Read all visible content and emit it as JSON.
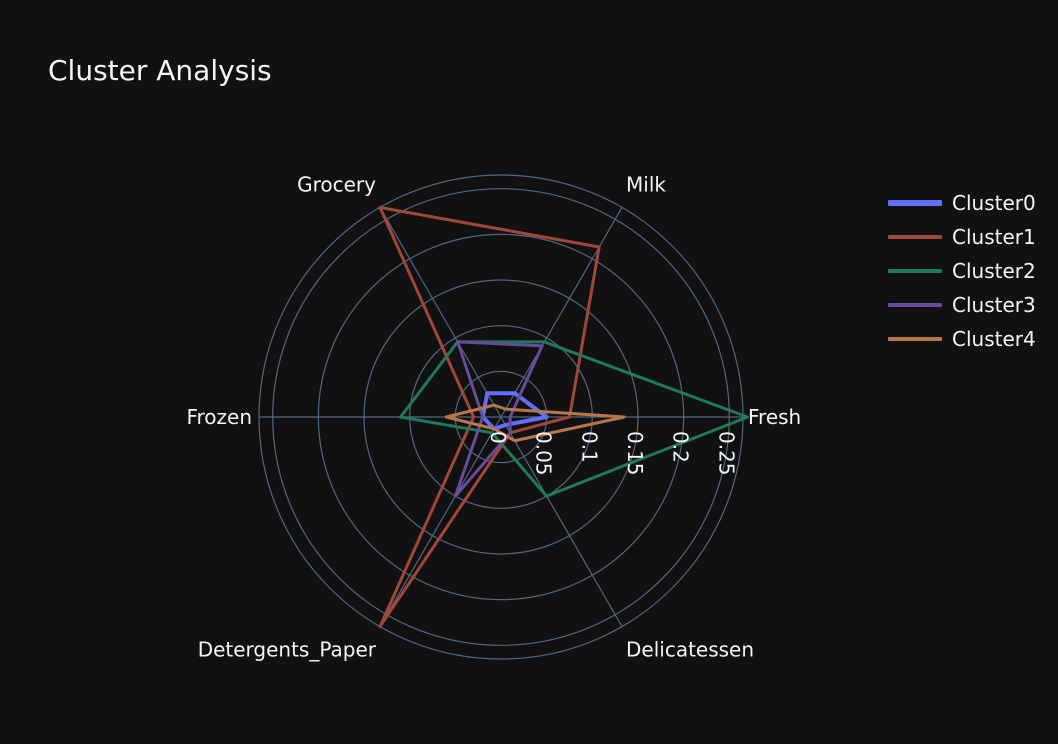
{
  "chart_data": {
    "type": "radar",
    "title": "Cluster Analysis",
    "axes": [
      "Fresh",
      "Milk",
      "Grocery",
      "Frozen",
      "Detergents_Paper",
      "Delicatessen"
    ],
    "radial_ticks": [
      "0",
      "0.05",
      "0.1",
      "0.15",
      "0.2",
      "0.25"
    ],
    "radial_range": [
      0,
      0.265
    ],
    "legend_position": "top-right",
    "series": [
      {
        "name": "Cluster0",
        "color": "#636efa",
        "values": [
          0.05,
          0.03,
          0.03,
          0.02,
          0.015,
          0.01
        ]
      },
      {
        "name": "Cluster1",
        "color": "#a0473a",
        "values": [
          0.075,
          0.215,
          0.265,
          0.03,
          0.265,
          0.02
        ]
      },
      {
        "name": "Cluster2",
        "color": "#1f7a5a",
        "values": [
          0.27,
          0.095,
          0.095,
          0.11,
          0.02,
          0.1
        ]
      },
      {
        "name": "Cluster3",
        "color": "#6a4a9a",
        "values": [
          0.01,
          0.09,
          0.095,
          0.02,
          0.1,
          0.02
        ]
      },
      {
        "name": "Cluster4",
        "color": "#b8774a",
        "values": [
          0.135,
          0.01,
          0.015,
          0.06,
          0.015,
          0.03
        ]
      }
    ]
  }
}
